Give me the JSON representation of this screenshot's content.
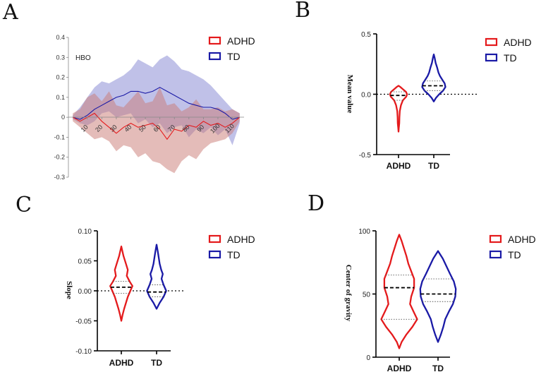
{
  "colors": {
    "adhd": "#e41a1c",
    "td": "#1a1aa6",
    "adhd_fill": "#c97a74",
    "td_fill": "#8c8ed6"
  },
  "chart_data": [
    {
      "panel": "A",
      "type": "area",
      "annotation": "HBO",
      "xlim": [
        -3,
        118
      ],
      "ylim": [
        -0.3,
        0.4
      ],
      "yticks": [
        "0.4",
        "0.3",
        "0.2",
        "0.1",
        "0",
        "-0.1",
        "-0.2",
        "-0.3"
      ],
      "ytick_values": [
        0.4,
        0.3,
        0.2,
        0.1,
        0,
        -0.1,
        -0.2,
        -0.3
      ],
      "xticks": [
        "10",
        "20",
        "30",
        "40",
        "50",
        "60",
        "70",
        "80",
        "90",
        "100",
        "110"
      ],
      "xtick_values": [
        10,
        20,
        30,
        40,
        50,
        60,
        70,
        80,
        90,
        100,
        110
      ],
      "legend": [
        "ADHD",
        "TD"
      ],
      "series": [
        {
          "name": "TD",
          "x": [
            0,
            5,
            10,
            15,
            20,
            25,
            30,
            35,
            40,
            45,
            50,
            55,
            60,
            65,
            70,
            75,
            80,
            85,
            90,
            95,
            100,
            105,
            110,
            115
          ],
          "mean": [
            0,
            -0.01,
            0.01,
            0.04,
            0.06,
            0.08,
            0.1,
            0.11,
            0.13,
            0.13,
            0.12,
            0.13,
            0.15,
            0.13,
            0.11,
            0.09,
            0.07,
            0.06,
            0.05,
            0.05,
            0.04,
            0.02,
            -0.01,
            0
          ],
          "upper": [
            0.01,
            0.05,
            0.1,
            0.15,
            0.18,
            0.17,
            0.19,
            0.21,
            0.24,
            0.29,
            0.27,
            0.25,
            0.29,
            0.31,
            0.28,
            0.24,
            0.23,
            0.21,
            0.19,
            0.16,
            0.12,
            0.08,
            0.04,
            0.02
          ],
          "lower": [
            -0.01,
            -0.03,
            -0.04,
            -0.02,
            0.02,
            0.03,
            0.0,
            0.01,
            0.02,
            -0.03,
            -0.01,
            -0.05,
            -0.03,
            -0.08,
            -0.05,
            -0.04,
            -0.1,
            -0.06,
            -0.08,
            -0.05,
            -0.09,
            -0.06,
            -0.14,
            -0.03
          ]
        },
        {
          "name": "ADHD",
          "x": [
            0,
            5,
            10,
            15,
            20,
            25,
            30,
            35,
            40,
            45,
            50,
            55,
            60,
            65,
            70,
            75,
            80,
            85,
            90,
            95,
            100,
            105,
            110,
            115
          ],
          "mean": [
            0,
            -0.02,
            0,
            0.02,
            -0.02,
            -0.05,
            -0.08,
            -0.05,
            -0.03,
            -0.05,
            -0.04,
            -0.03,
            -0.06,
            -0.11,
            -0.06,
            -0.07,
            -0.04,
            -0.05,
            -0.02,
            -0.04,
            -0.03,
            -0.05,
            -0.03,
            0
          ],
          "upper": [
            0.02,
            0.04,
            0.1,
            0.12,
            0.08,
            0.13,
            0.06,
            0.05,
            0.09,
            0.13,
            0.07,
            0.08,
            0.15,
            0.06,
            0.07,
            0.03,
            0.05,
            0.09,
            0.04,
            0.04,
            0.05,
            0.03,
            0.04,
            0.02
          ],
          "lower": [
            -0.02,
            -0.05,
            -0.08,
            -0.11,
            -0.1,
            -0.12,
            -0.17,
            -0.14,
            -0.15,
            -0.2,
            -0.18,
            -0.22,
            -0.23,
            -0.26,
            -0.28,
            -0.22,
            -0.19,
            -0.21,
            -0.16,
            -0.13,
            -0.12,
            -0.11,
            -0.08,
            -0.02
          ]
        }
      ]
    },
    {
      "panel": "B",
      "type": "violin",
      "ylabel": "Mean value",
      "ylim": [
        -0.5,
        0.5
      ],
      "yticks": [
        "0.5",
        "0.0",
        "-0.5"
      ],
      "ytick_values": [
        0.5,
        0.0,
        -0.5
      ],
      "reference_line": 0,
      "categories": [
        "ADHD",
        "TD"
      ],
      "legend": [
        "ADHD",
        "TD"
      ],
      "groups": [
        {
          "name": "ADHD",
          "min": -0.31,
          "max": 0.07,
          "median": -0.01,
          "q1": -0.05,
          "q3": 0.02,
          "profile": [
            [
              -0.31,
              0.0
            ],
            [
              -0.28,
              0.02
            ],
            [
              -0.24,
              0.05
            ],
            [
              -0.19,
              0.06
            ],
            [
              -0.14,
              0.08
            ],
            [
              -0.09,
              0.16
            ],
            [
              -0.05,
              0.28
            ],
            [
              -0.02,
              0.5
            ],
            [
              0.0,
              0.55
            ],
            [
              0.02,
              0.48
            ],
            [
              0.04,
              0.3
            ],
            [
              0.06,
              0.12
            ],
            [
              0.07,
              0.0
            ]
          ]
        },
        {
          "name": "TD",
          "min": -0.06,
          "max": 0.33,
          "median": 0.07,
          "q1": 0.03,
          "q3": 0.11,
          "profile": [
            [
              -0.06,
              0.0
            ],
            [
              -0.03,
              0.14
            ],
            [
              0.0,
              0.35
            ],
            [
              0.03,
              0.6
            ],
            [
              0.06,
              0.75
            ],
            [
              0.09,
              0.7
            ],
            [
              0.12,
              0.55
            ],
            [
              0.15,
              0.4
            ],
            [
              0.18,
              0.3
            ],
            [
              0.22,
              0.22
            ],
            [
              0.26,
              0.12
            ],
            [
              0.3,
              0.06
            ],
            [
              0.33,
              0.0
            ]
          ]
        }
      ]
    },
    {
      "panel": "C",
      "type": "violin",
      "ylabel": "Slope",
      "ylim": [
        -0.1,
        0.1
      ],
      "yticks": [
        "0.10",
        "0.05",
        "0.00",
        "-0.05",
        "-0.10"
      ],
      "ytick_values": [
        0.1,
        0.05,
        0.0,
        -0.05,
        -0.1
      ],
      "reference_line": 0,
      "categories": [
        "ADHD",
        "TD"
      ],
      "legend": [
        "ADHD",
        "TD"
      ],
      "groups": [
        {
          "name": "ADHD",
          "min": -0.05,
          "max": 0.074,
          "median": 0.006,
          "q1": -0.004,
          "q3": 0.016,
          "profile": [
            [
              -0.05,
              0.0
            ],
            [
              -0.04,
              0.08
            ],
            [
              -0.03,
              0.18
            ],
            [
              -0.02,
              0.3
            ],
            [
              -0.01,
              0.42
            ],
            [
              0.0,
              0.58
            ],
            [
              0.008,
              0.72
            ],
            [
              0.015,
              0.55
            ],
            [
              0.025,
              0.35
            ],
            [
              0.035,
              0.42
            ],
            [
              0.045,
              0.3
            ],
            [
              0.058,
              0.14
            ],
            [
              0.074,
              0.0
            ]
          ]
        },
        {
          "name": "TD",
          "min": -0.03,
          "max": 0.077,
          "median": -0.002,
          "q1": -0.01,
          "q3": 0.01,
          "profile": [
            [
              -0.03,
              0.0
            ],
            [
              -0.02,
              0.2
            ],
            [
              -0.01,
              0.45
            ],
            [
              0.0,
              0.62
            ],
            [
              0.01,
              0.45
            ],
            [
              0.02,
              0.32
            ],
            [
              0.028,
              0.4
            ],
            [
              0.035,
              0.3
            ],
            [
              0.045,
              0.2
            ],
            [
              0.055,
              0.14
            ],
            [
              0.065,
              0.08
            ],
            [
              0.077,
              0.0
            ]
          ]
        }
      ]
    },
    {
      "panel": "D",
      "type": "violin",
      "ylabel": "Center of gravity",
      "ylim": [
        0,
        100
      ],
      "yticks": [
        "100",
        "50",
        "0"
      ],
      "ytick_values": [
        100,
        50,
        0
      ],
      "categories": [
        "ADHD",
        "TD"
      ],
      "legend": [
        "ADHD",
        "TD"
      ],
      "groups": [
        {
          "name": "ADHD",
          "min": 7,
          "max": 97,
          "median": 55,
          "q1": 30,
          "q3": 65,
          "profile": [
            [
              7,
              0.0
            ],
            [
              12,
              0.1
            ],
            [
              18,
              0.3
            ],
            [
              24,
              0.55
            ],
            [
              30,
              0.75
            ],
            [
              36,
              0.6
            ],
            [
              42,
              0.45
            ],
            [
              48,
              0.5
            ],
            [
              55,
              0.62
            ],
            [
              62,
              0.62
            ],
            [
              68,
              0.5
            ],
            [
              74,
              0.38
            ],
            [
              80,
              0.3
            ],
            [
              86,
              0.2
            ],
            [
              92,
              0.1
            ],
            [
              97,
              0.0
            ]
          ]
        },
        {
          "name": "TD",
          "min": 12,
          "max": 84,
          "median": 50,
          "q1": 44,
          "q3": 62,
          "profile": [
            [
              12,
              0.0
            ],
            [
              18,
              0.12
            ],
            [
              24,
              0.22
            ],
            [
              30,
              0.3
            ],
            [
              36,
              0.45
            ],
            [
              42,
              0.62
            ],
            [
              48,
              0.72
            ],
            [
              54,
              0.74
            ],
            [
              60,
              0.66
            ],
            [
              66,
              0.5
            ],
            [
              72,
              0.35
            ],
            [
              78,
              0.2
            ],
            [
              84,
              0.0
            ]
          ]
        }
      ]
    }
  ]
}
